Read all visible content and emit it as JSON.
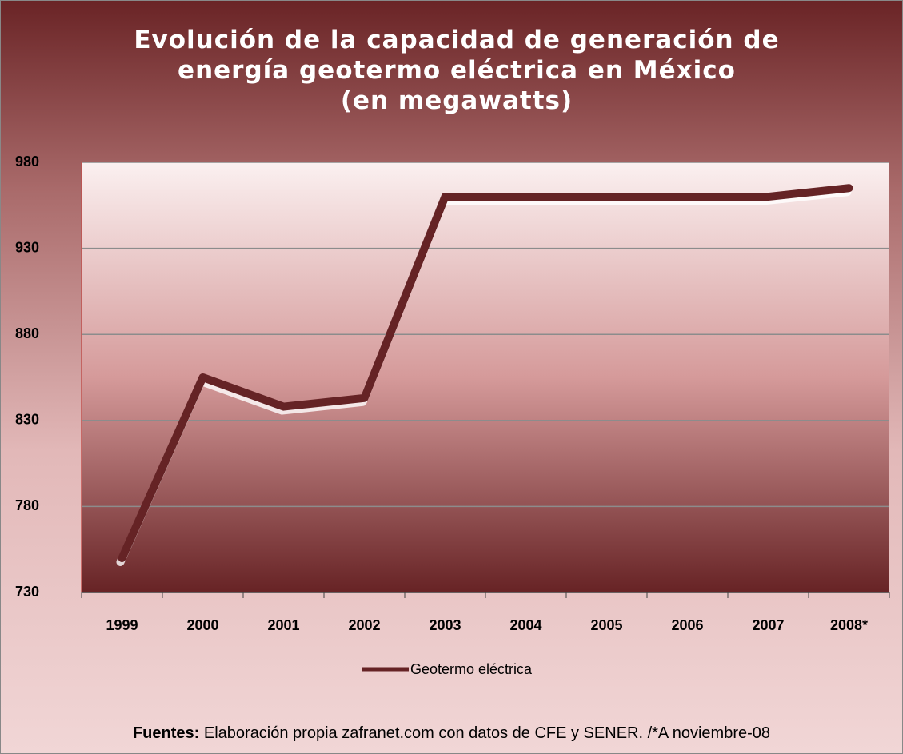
{
  "chart_data": {
    "type": "line",
    "title": "Evolución de la capacidad de generación de energía geotermo eléctrica en México",
    "subtitle": "(en megawatts)",
    "categories": [
      "1999",
      "2000",
      "2001",
      "2002",
      "2003",
      "2004",
      "2005",
      "2006",
      "2007",
      "2008*"
    ],
    "series": [
      {
        "name": "Geotermo eléctrica",
        "color": "#652325",
        "values": [
          750,
          855,
          838,
          843,
          960,
          960,
          960,
          960,
          960,
          965
        ]
      }
    ],
    "ylim": [
      730,
      980
    ],
    "yticks": [
      730,
      780,
      830,
      880,
      930,
      980
    ],
    "grid": true,
    "legend": "bottom",
    "source_label": "Fuentes:",
    "source": "Elaboración propia zafranet.com con datos de CFE y SENER.  /*A noviembre-08"
  }
}
